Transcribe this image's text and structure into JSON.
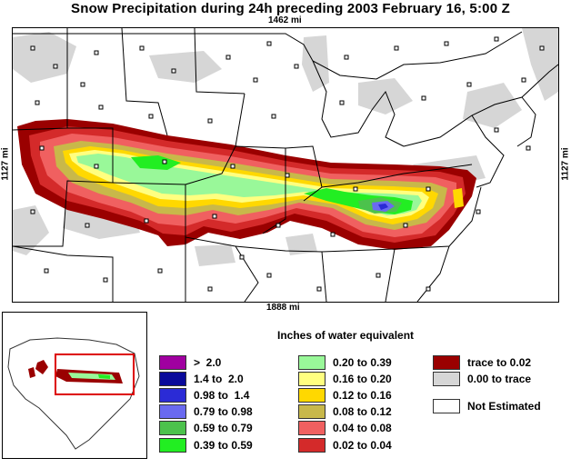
{
  "title": "Snow Precipitation during 24h preceding 2003 February 16, 5:00 Z",
  "dimensions": {
    "top": "1462 mi",
    "bottom": "1888 mi",
    "left": "1127 mi",
    "right": "1127 mi"
  },
  "legend": {
    "title": "Inches of water equivalent",
    "column1": [
      {
        "label": ">  2.0",
        "color": "#a000a0"
      },
      {
        "label": "1.4 to  2.0",
        "color": "#0a0a9a"
      },
      {
        "label": "0.98 to  1.4",
        "color": "#2b2bd6"
      },
      {
        "label": "0.79 to 0.98",
        "color": "#6a6af0"
      },
      {
        "label": "0.59 to 0.79",
        "color": "#4cc24c"
      },
      {
        "label": "0.39 to 0.59",
        "color": "#22ee22"
      }
    ],
    "column2": [
      {
        "label": "0.20 to 0.39",
        "color": "#99f899"
      },
      {
        "label": "0.16 to 0.20",
        "color": "#ffff80"
      },
      {
        "label": "0.12 to 0.16",
        "color": "#ffd800"
      },
      {
        "label": "0.08 to 0.12",
        "color": "#c8b84a"
      },
      {
        "label": "0.04 to 0.08",
        "color": "#f06060"
      },
      {
        "label": "0.02 to 0.04",
        "color": "#d42a2a"
      }
    ],
    "column3": [
      {
        "label": "trace to 0.02",
        "color": "#9a0000"
      },
      {
        "label": "0.00 to trace",
        "color": "#d6d6d6"
      },
      {
        "label": "Not Estimated",
        "color": "#ffffff"
      }
    ]
  },
  "overview": {
    "highlight_color": "#dd0000"
  }
}
